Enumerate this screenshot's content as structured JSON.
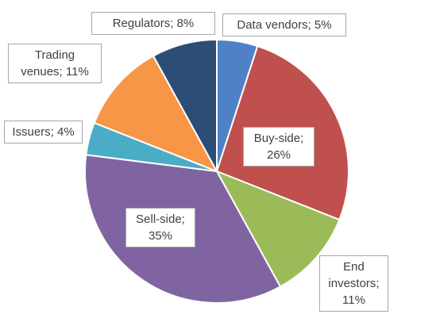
{
  "chart_data": {
    "type": "pie",
    "values": [
      5,
      26,
      11,
      35,
      4,
      11,
      8
    ],
    "value_labels": [
      "Data vendors; 5%",
      "Buy-side; 26%",
      "End investors; 11%",
      "Sell-side; 35%",
      "Issuers; 4%",
      "Trading venues; 11%",
      "Regulators; 8%"
    ],
    "colors": [
      "#4f81c7",
      "#c0504d",
      "#9bbb59",
      "#8064a2",
      "#4bacc6",
      "#f79646",
      "#2c4d75"
    ]
  }
}
